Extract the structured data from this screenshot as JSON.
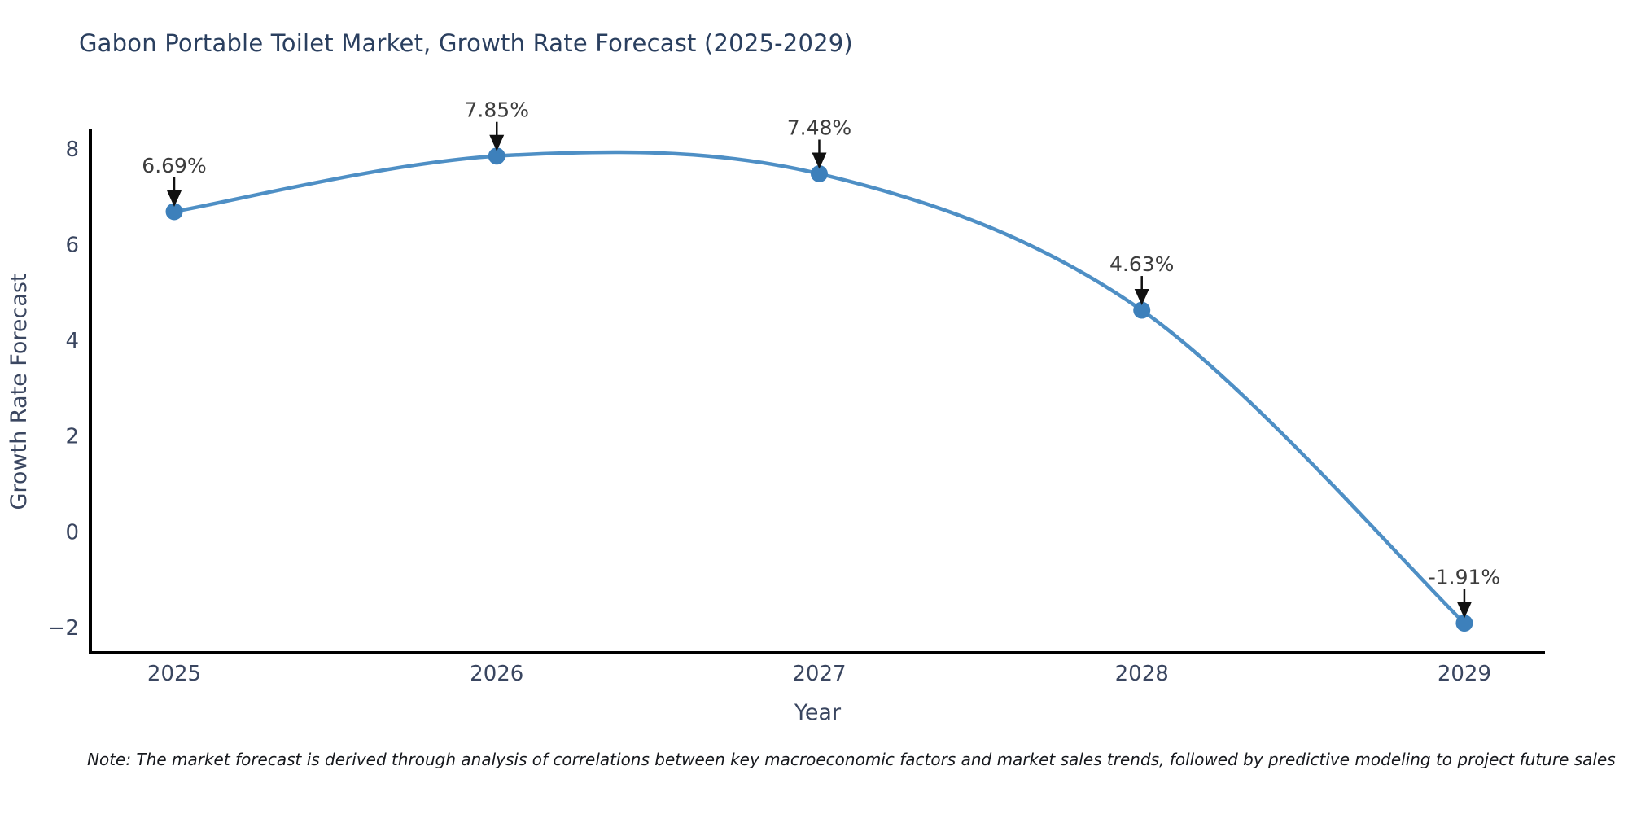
{
  "chart_data": {
    "type": "line",
    "title": "Gabon Portable Toilet Market, Growth Rate Forecast (2025-2029)",
    "xlabel": "Year",
    "ylabel": "Growth Rate Forecast",
    "x": [
      2025,
      2026,
      2027,
      2028,
      2029
    ],
    "series": [
      {
        "name": "Growth Rate Forecast",
        "values": [
          6.69,
          7.85,
          7.48,
          4.63,
          -1.91
        ]
      }
    ],
    "point_labels": [
      "6.69%",
      "7.85%",
      "7.48%",
      "4.63%",
      "-1.91%"
    ],
    "xtick_labels": [
      "2025",
      "2026",
      "2027",
      "2028",
      "2029"
    ],
    "ytick_values": [
      8,
      6,
      4,
      2,
      0,
      -2
    ],
    "ytick_labels": [
      "8",
      "6",
      "4",
      "2",
      "0",
      "−2"
    ],
    "xlim": [
      2024.74,
      2029.25
    ],
    "ylim": [
      -2.53,
      8.39
    ],
    "grid": false,
    "legend": "none",
    "marker_style": "circle",
    "annotation_style": "value-above-with-down-arrow",
    "colors": {
      "line": "#4e8fc5",
      "marker": "#3d80bb",
      "spine": "#000000",
      "annotation": "#3d3d3d",
      "arrow": "#111111",
      "title": "#2a3f5f",
      "tick": "#3a4660"
    }
  },
  "note": {
    "text": "Note: The market forecast is derived through analysis of correlations between key macroeconomic factors and market sales trends, followed by predictive modeling to project future sales"
  }
}
